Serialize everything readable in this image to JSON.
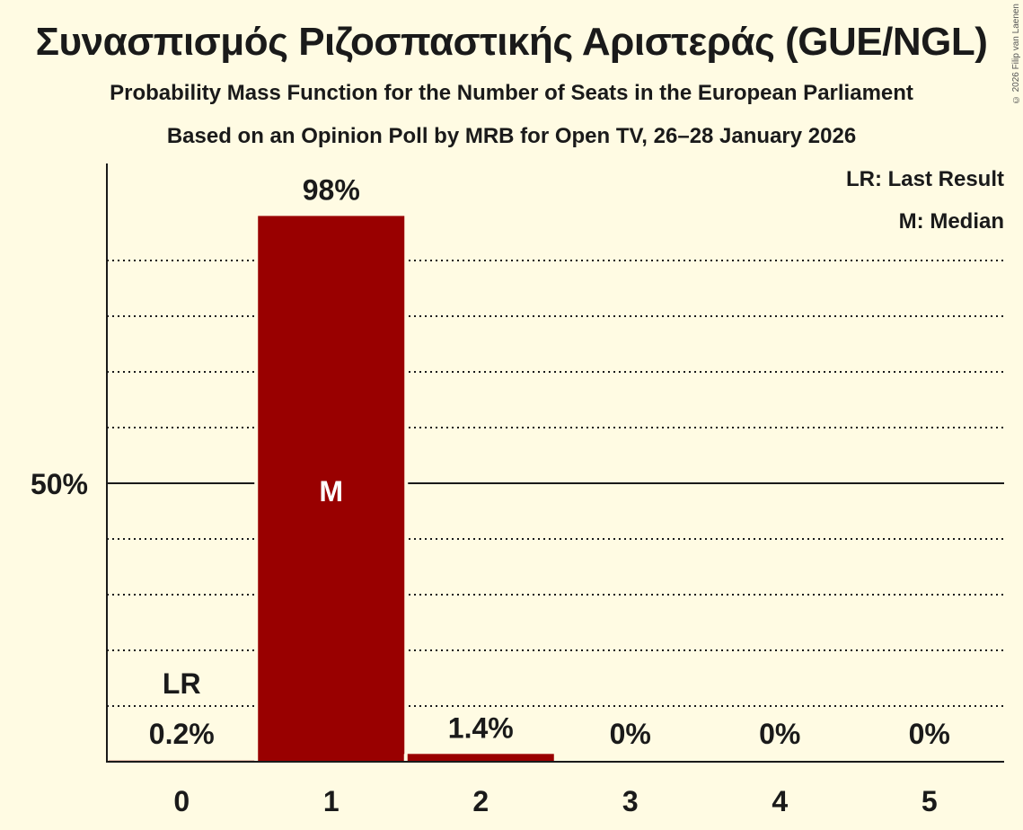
{
  "header": {
    "title": "Συνασπισμός Ριζοσπαστικής Αριστεράς (GUE/NGL)",
    "subtitle": "Probability Mass Function for the Number of Seats in the European Parliament",
    "source": "Based on an Opinion Poll by MRB for Open TV, 26–28 January 2026",
    "copyright": "© 2026 Filip van Laenen"
  },
  "legend": {
    "lr": "LR: Last Result",
    "m": "M: Median"
  },
  "colors": {
    "background": "#fffbe3",
    "bar": "#990000",
    "text": "#1a1a1a"
  },
  "chart_data": {
    "type": "bar",
    "title": "Συνασπισμός Ριζοσπαστικής Αριστεράς (GUE/NGL)",
    "subtitle": "Probability Mass Function for the Number of Seats in the European Parliament",
    "xlabel": "",
    "ylabel": "",
    "categories": [
      "0",
      "1",
      "2",
      "3",
      "4",
      "5"
    ],
    "values": [
      0.2,
      98,
      1.4,
      0,
      0,
      0
    ],
    "labels": [
      "0.2%",
      "98%",
      "1.4%",
      "0%",
      "0%",
      "0%"
    ],
    "ylim": [
      0,
      100
    ],
    "yticks": [
      {
        "value": 50,
        "label": "50%"
      }
    ],
    "grid": "dotted every 10%, solid at 50%",
    "annotations": [
      {
        "category": "0",
        "text": "LR",
        "meaning": "Last Result"
      },
      {
        "category": "1",
        "text": "M",
        "meaning": "Median"
      }
    ],
    "legend_position": "top-right"
  }
}
